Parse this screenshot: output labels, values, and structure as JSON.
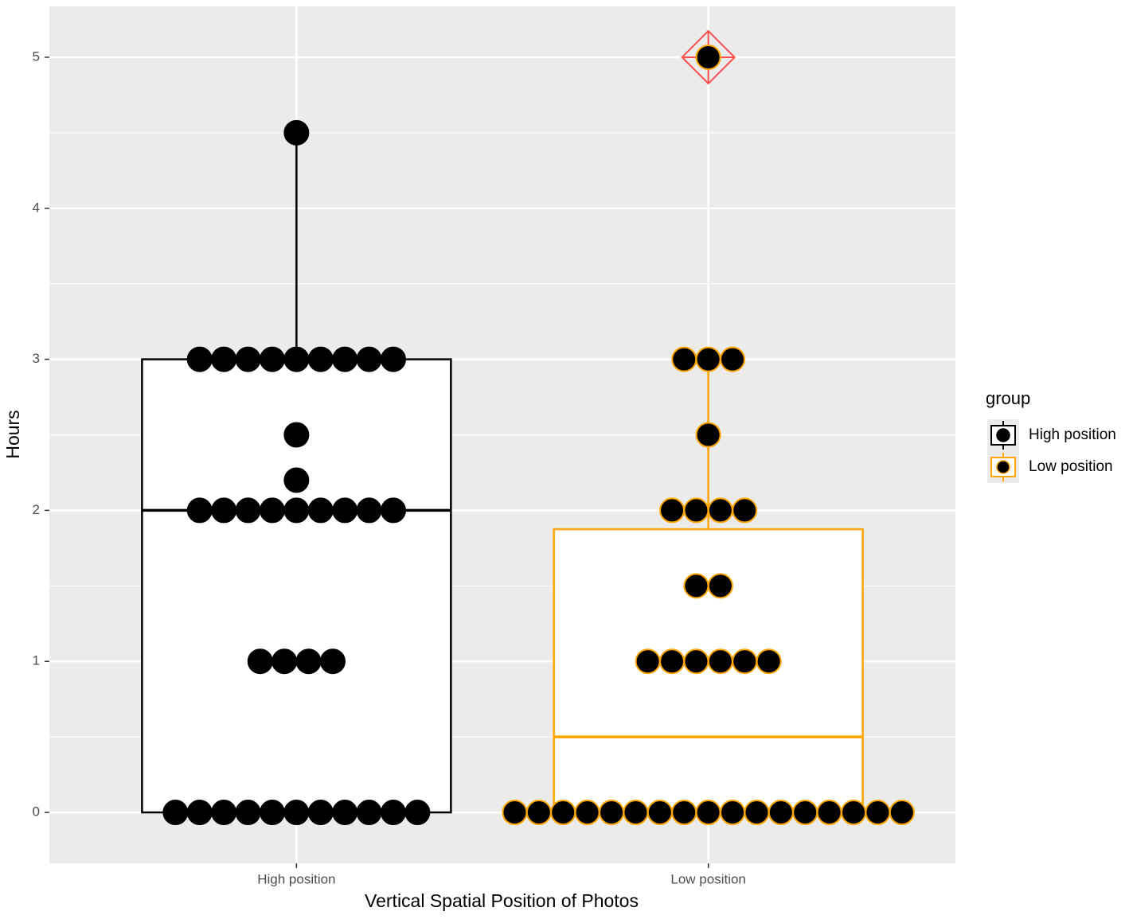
{
  "chart_data": {
    "type": "box",
    "x_label": "Vertical Spatial Position of Photos",
    "y_label": "Hours",
    "categories": [
      "High position",
      "Low position"
    ],
    "ylim": [
      -0.337,
      5.337
    ],
    "yticks": [
      0,
      1,
      2,
      3,
      4,
      5
    ],
    "minor_yticks": [
      0.5,
      1.5,
      2.5,
      3.5,
      4.5
    ],
    "grid": true,
    "legend_title": "group",
    "legend_position": "right",
    "outlier_color": "#ff4d4d",
    "series": [
      {
        "name": "High position",
        "color": "#000000",
        "whisker_low": 0,
        "q1": 0,
        "median": 2,
        "q3": 3,
        "whisker_high": 4.5,
        "outliers": [],
        "points": [
          0,
          0,
          0,
          0,
          0,
          0,
          0,
          0,
          0,
          0,
          0,
          1,
          1,
          1,
          1,
          2,
          2,
          2,
          2,
          2,
          2,
          2,
          2,
          2,
          2.2,
          2.5,
          3,
          3,
          3,
          3,
          3,
          3,
          3,
          3,
          3,
          4.5
        ]
      },
      {
        "name": "Low position",
        "color": "#ffa500",
        "whisker_low": 0,
        "q1": 0,
        "median": 0.5,
        "q3": 1.875,
        "whisker_high": 3,
        "outliers": [
          5
        ],
        "points": [
          0,
          0,
          0,
          0,
          0,
          0,
          0,
          0,
          0,
          0,
          0,
          0,
          0,
          0,
          0,
          0,
          0,
          1,
          1,
          1,
          1,
          1,
          1,
          1.5,
          1.5,
          2,
          2,
          2,
          2,
          2.5,
          3,
          3,
          3,
          5
        ]
      }
    ]
  }
}
